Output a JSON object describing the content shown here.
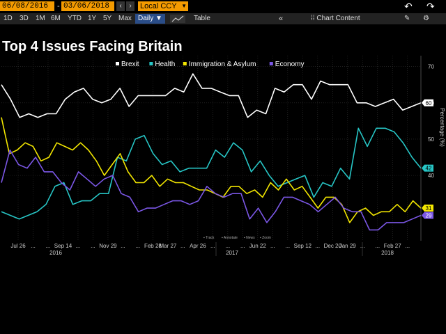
{
  "toolbar": {
    "start_date": "06/08/2016",
    "end_date": "03/06/2018",
    "currency": "Local CCY",
    "periods": [
      "1D",
      "3D",
      "1M",
      "6M",
      "YTD",
      "1Y",
      "5Y",
      "Max"
    ],
    "frequency": "Daily",
    "table_label": "Table",
    "chart_content_label": "Chart Content"
  },
  "chart_data": {
    "type": "line",
    "title": "Top 4 Issues Facing Britain",
    "ylabel": "Percentage (%)",
    "xlabel": "",
    "ylim": [
      22,
      73
    ],
    "y_ticks": [
      70,
      60,
      50,
      40
    ],
    "x_ticks": [
      "Jul 26",
      "...",
      "...",
      "Sep 14",
      "...",
      "...",
      "Nov 29",
      "...",
      "...",
      "Feb 28",
      "Mar 27",
      "...",
      "Apr 26",
      "...",
      "...",
      "...",
      "Jun 22",
      "...",
      "...",
      "Sep 12",
      "...",
      "Dec 20",
      "Jan 29",
      "...",
      "...",
      "Feb 27",
      "..."
    ],
    "x_year_labels": [
      "2016",
      "2017",
      "2018"
    ],
    "grid": true,
    "legend_position": "top-right",
    "footer_controls": [
      "Track",
      "Annotate",
      "News",
      "Zoom"
    ],
    "series": [
      {
        "name": "Brexit",
        "color": "#ffffff",
        "last_label": "60",
        "values": [
          65,
          61,
          56,
          57,
          56,
          57,
          57,
          61,
          63,
          64,
          61,
          60,
          61,
          64,
          59,
          62,
          62,
          62,
          62,
          64,
          63,
          68,
          64,
          64,
          63,
          62,
          62,
          56,
          58,
          57,
          64,
          63,
          65,
          65,
          61,
          66,
          65,
          65,
          65,
          60,
          60,
          59,
          60,
          61,
          58,
          59,
          60
        ]
      },
      {
        "name": "Health",
        "color": "#27c6c6",
        "last_label": "42",
        "values": [
          30,
          29,
          28,
          29,
          30,
          32,
          37,
          38,
          32,
          33,
          33,
          35,
          35,
          45,
          44,
          50,
          51,
          46,
          43,
          44,
          41,
          42,
          42,
          42,
          47,
          45,
          49,
          47,
          41,
          44,
          40,
          37,
          38,
          39,
          40,
          34,
          38,
          37,
          42,
          39,
          53,
          48,
          53,
          53,
          52,
          49,
          45,
          42
        ]
      },
      {
        "name": "Immigration & Asylum",
        "color": "#f2e600",
        "last_label": "31",
        "values": [
          56,
          46,
          47,
          49,
          48,
          44,
          45,
          49,
          48,
          47,
          49,
          47,
          44,
          40,
          43,
          46,
          41,
          38,
          38,
          40,
          37,
          39,
          38,
          38,
          37,
          36,
          36,
          35,
          34,
          37,
          37,
          35,
          36,
          34,
          38,
          36,
          39,
          36,
          37,
          34,
          31,
          34,
          34,
          32,
          27,
          30,
          31,
          29,
          30,
          30,
          32,
          30,
          33,
          31
        ]
      },
      {
        "name": "Economy",
        "color": "#7b57e6",
        "last_label": "29",
        "values": [
          38,
          47,
          43,
          42,
          45,
          41,
          41,
          38,
          36,
          41,
          39,
          37,
          39,
          40,
          35,
          34,
          30,
          31,
          31,
          32,
          33,
          33,
          32,
          33,
          37,
          35,
          34,
          35,
          35,
          28,
          31,
          27,
          30,
          34,
          34,
          33,
          32,
          30,
          32,
          34,
          31,
          30,
          30,
          25,
          25,
          27,
          27,
          27,
          28,
          29
        ]
      }
    ]
  }
}
